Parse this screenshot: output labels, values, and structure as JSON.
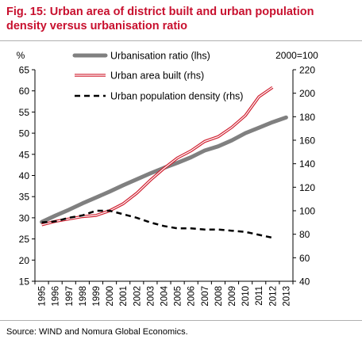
{
  "title": "Fig. 15: Urban area of district built and urban population density versus urbanisation ratio",
  "source": "Source: WIND and Nomura Global Economics.",
  "colors": {
    "title": "#c8102e",
    "urbanisation": "#808080",
    "area": "#d02030",
    "density": "#000000"
  },
  "chart_data": {
    "type": "line",
    "left_unit": "%",
    "right_unit": "2000=100",
    "x": [
      "1995",
      "1996",
      "1997",
      "1998",
      "1999",
      "2000",
      "2001",
      "2002",
      "2003",
      "2004",
      "2005",
      "2006",
      "2007",
      "2008",
      "2009",
      "2010",
      "2011",
      "2012",
      "2013"
    ],
    "y_left": {
      "range": [
        15,
        65
      ],
      "ticks": [
        "15",
        "20",
        "25",
        "30",
        "35",
        "40",
        "45",
        "50",
        "55",
        "60",
        "65"
      ]
    },
    "y_right": {
      "range": [
        40,
        220
      ],
      "ticks": [
        "40",
        "60",
        "80",
        "100",
        "120",
        "140",
        "160",
        "180",
        "200",
        "220"
      ]
    },
    "legend_placement": "top",
    "series": [
      {
        "name": "Urbanisation ratio (lhs)",
        "axis": "left",
        "style": "thick-gray",
        "x": [
          "1995",
          "1996",
          "1997",
          "1998",
          "1999",
          "2000",
          "2001",
          "2002",
          "2003",
          "2004",
          "2005",
          "2006",
          "2007",
          "2008",
          "2009",
          "2010",
          "2011",
          "2012",
          "2013"
        ],
        "values": [
          29.0,
          30.5,
          31.9,
          33.4,
          34.8,
          36.2,
          37.7,
          39.1,
          40.5,
          41.8,
          43.0,
          44.3,
          45.9,
          46.9,
          48.3,
          50.0,
          51.3,
          52.6,
          53.7
        ]
      },
      {
        "name": "Urban area built (rhs)",
        "axis": "right",
        "style": "red-outline",
        "x": [
          "1995",
          "1996",
          "1997",
          "1998",
          "1999",
          "2000",
          "2001",
          "2002",
          "2003",
          "2004",
          "2005",
          "2006",
          "2007",
          "2008",
          "2009",
          "2010",
          "2011",
          "2012"
        ],
        "values": [
          88,
          91,
          93,
          95,
          96,
          100,
          106,
          115,
          126,
          136,
          145,
          151,
          159,
          163,
          171,
          181,
          197,
          205
        ]
      },
      {
        "name": "Urban population density (rhs)",
        "axis": "right",
        "style": "black-dashed",
        "x": [
          "1995",
          "1996",
          "1997",
          "1998",
          "1999",
          "2000",
          "2001",
          "2002",
          "2003",
          "2004",
          "2005",
          "2006",
          "2007",
          "2008",
          "2009",
          "2010",
          "2011",
          "2012"
        ],
        "values": [
          90,
          91,
          94,
          96,
          100,
          100,
          97,
          94,
          90,
          87,
          85,
          85,
          84,
          84,
          83,
          82,
          null,
          77
        ]
      }
    ]
  }
}
